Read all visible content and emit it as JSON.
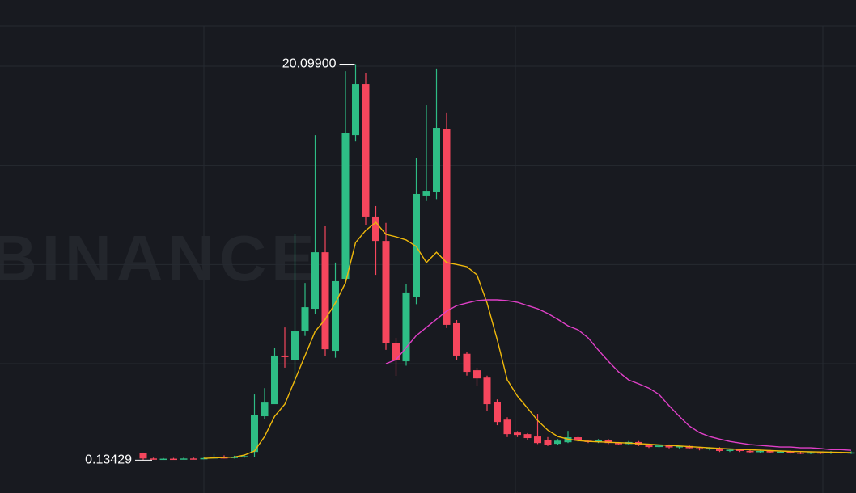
{
  "chart_data": {
    "type": "candlestick",
    "watermark": "BINANCE",
    "ylim": [
      -1.52,
      23.34
    ],
    "yticks": [
      5,
      10,
      15,
      20
    ],
    "grid": true,
    "up_color": "#2ebd85",
    "down_color": "#f6465d",
    "open": [
      0.48,
      0.22,
      0.18,
      0.21,
      0.19,
      0.22,
      0.2,
      0.24,
      0.28,
      0.25,
      0.3,
      0.55,
      2.35,
      2.96,
      5.41,
      5.2,
      6.63,
      7.77,
      10.62,
      5.65,
      9.28,
      16.53,
      19.1,
      12.42,
      11.19,
      6.02,
      5.12,
      8.38,
      13.48,
      13.68,
      16.82,
      7.04,
      5.5,
      4.67,
      4.3,
      3.08,
      2.18,
      1.53,
      1.45,
      1.33,
      1.17,
      0.96,
      1.04,
      1.29,
      1.12,
      1.05,
      1.15,
      1.0,
      0.95,
      1.05,
      0.9,
      0.8,
      0.88,
      0.78,
      0.85,
      0.74,
      0.68,
      0.74,
      0.6,
      0.66,
      0.6,
      0.55,
      0.6,
      0.53,
      0.57,
      0.52,
      0.49,
      0.53,
      0.5,
      0.54,
      0.5
    ],
    "high": [
      0.52,
      0.26,
      0.24,
      0.25,
      0.26,
      0.26,
      0.3,
      0.45,
      0.38,
      0.36,
      0.42,
      3.45,
      3.77,
      5.81,
      6.83,
      11.52,
      9.07,
      16.53,
      11.93,
      10.1,
      19.75,
      20.099,
      19.67,
      12.95,
      12.1,
      6.3,
      9.0,
      15.39,
      18.04,
      19.88,
      17.64,
      7.2,
      5.6,
      4.8,
      4.4,
      3.2,
      2.3,
      1.6,
      1.5,
      2.47,
      1.3,
      1.2,
      1.61,
      1.35,
      1.17,
      1.2,
      1.2,
      1.05,
      1.1,
      1.1,
      0.95,
      0.93,
      0.93,
      0.83,
      0.9,
      0.79,
      0.79,
      0.79,
      0.71,
      0.71,
      0.65,
      0.65,
      0.65,
      0.62,
      0.62,
      0.57,
      0.58,
      0.58,
      0.59,
      0.59,
      0.58
    ],
    "low": [
      0.13429,
      0.16,
      0.15,
      0.17,
      0.17,
      0.18,
      0.18,
      0.21,
      0.22,
      0.22,
      0.26,
      0.31,
      2.2,
      3.0,
      4.8,
      3.98,
      6.4,
      7.5,
      5.41,
      5.3,
      9.0,
      16.2,
      12.0,
      9.48,
      5.7,
      4.39,
      4.9,
      8.0,
      13.2,
      13.3,
      6.8,
      5.2,
      4.4,
      3.9,
      2.6,
      1.9,
      1.3,
      1.3,
      1.15,
      0.95,
      0.85,
      0.9,
      1.0,
      1.05,
      1.0,
      1.0,
      0.95,
      0.9,
      0.9,
      0.85,
      0.75,
      0.75,
      0.73,
      0.73,
      0.69,
      0.63,
      0.63,
      0.55,
      0.55,
      0.55,
      0.5,
      0.5,
      0.48,
      0.48,
      0.47,
      0.44,
      0.44,
      0.45,
      0.45,
      0.45,
      0.45
    ],
    "close": [
      0.22,
      0.18,
      0.21,
      0.19,
      0.22,
      0.2,
      0.24,
      0.28,
      0.25,
      0.3,
      0.34,
      2.43,
      3.04,
      5.41,
      5.33,
      6.63,
      7.85,
      10.62,
      5.73,
      9.16,
      16.62,
      19.1,
      12.42,
      11.19,
      6.02,
      5.2,
      8.59,
      13.56,
      13.72,
      16.9,
      6.96,
      5.41,
      4.59,
      4.26,
      2.96,
      2.06,
      1.45,
      1.41,
      1.25,
      1.0,
      0.92,
      1.12,
      1.29,
      1.12,
      1.05,
      1.15,
      1.0,
      0.95,
      1.05,
      0.9,
      0.8,
      0.88,
      0.78,
      0.85,
      0.74,
      0.68,
      0.74,
      0.6,
      0.66,
      0.6,
      0.55,
      0.6,
      0.53,
      0.57,
      0.52,
      0.49,
      0.53,
      0.5,
      0.54,
      0.5,
      0.53
    ],
    "lines": [
      {
        "color": "#f0b90b",
        "values": [
          null,
          null,
          null,
          null,
          null,
          null,
          0.23,
          0.25,
          0.27,
          0.29,
          0.39,
          0.6,
          1.33,
          2.35,
          2.96,
          4.18,
          5.41,
          6.63,
          7.24,
          8.06,
          9.07,
          11.11,
          11.72,
          12.13,
          11.52,
          11.4,
          11.24,
          10.91,
          10.1,
          10.62,
          10.1,
          10.0,
          9.89,
          9.48,
          8.06,
          6.22,
          4.18,
          3.37,
          2.76,
          2.14,
          1.65,
          1.33,
          1.2,
          1.12,
          1.08,
          1.06,
          1.04,
          1.02,
          1.0,
          0.97,
          0.94,
          0.91,
          0.88,
          0.85,
          0.82,
          0.79,
          0.76,
          0.73,
          0.7,
          0.68,
          0.66,
          0.64,
          0.62,
          0.6,
          0.58,
          0.57,
          0.56,
          0.55,
          0.54,
          0.53,
          0.52
        ]
      },
      {
        "color": "#e040c8",
        "values": [
          null,
          null,
          null,
          null,
          null,
          null,
          null,
          null,
          null,
          null,
          null,
          null,
          null,
          null,
          null,
          null,
          null,
          null,
          null,
          null,
          null,
          null,
          null,
          null,
          5.0,
          5.2,
          5.81,
          6.42,
          6.83,
          7.24,
          7.65,
          7.93,
          8.06,
          8.18,
          8.22,
          8.22,
          8.18,
          8.1,
          7.93,
          7.77,
          7.53,
          7.24,
          6.91,
          6.71,
          6.3,
          5.69,
          5.12,
          4.59,
          4.18,
          3.98,
          3.77,
          3.45,
          2.88,
          2.35,
          1.86,
          1.53,
          1.33,
          1.2,
          1.08,
          1.0,
          0.92,
          0.88,
          0.84,
          0.8,
          0.8,
          0.76,
          0.76,
          0.72,
          0.67,
          0.67,
          0.63
        ]
      }
    ],
    "max_label": {
      "value": 20.099,
      "label": "20.09900"
    },
    "min_label": {
      "value": 0.13429,
      "label": "0.13429"
    }
  }
}
